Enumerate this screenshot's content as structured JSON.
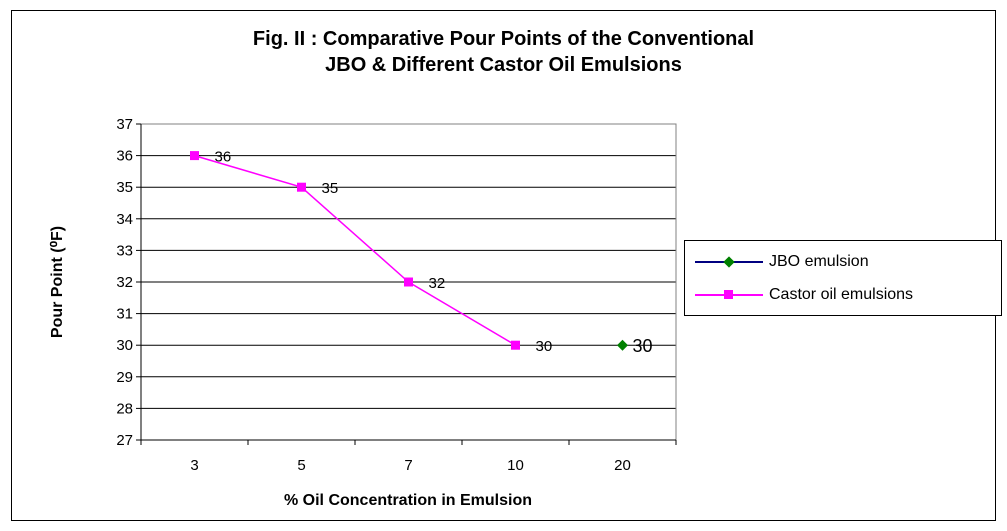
{
  "chart_data": {
    "type": "line",
    "title_line1": "Fig. II : Comparative Pour Points of the Conventional",
    "title_line2": "JBO & Different Castor Oil Emulsions",
    "xlabel": "% Oil Concentration in Emulsion",
    "ylabel": "Pour Point (⁰F)",
    "categories": [
      "3",
      "5",
      "7",
      "10",
      "20"
    ],
    "ylim": [
      27,
      37
    ],
    "yticks": [
      27,
      28,
      29,
      30,
      31,
      32,
      33,
      34,
      35,
      36,
      37
    ],
    "grid": true,
    "legend_position": "right",
    "series": [
      {
        "name": "JBO emulsion",
        "color": "#008000",
        "line_color": "#000080",
        "marker": "diamond",
        "values": [
          null,
          null,
          null,
          null,
          30
        ],
        "labels": [
          "",
          "",
          "",
          "",
          "30"
        ]
      },
      {
        "name": "Castor oil emulsions",
        "color": "#ff00ff",
        "line_color": "#ff00ff",
        "marker": "square",
        "values": [
          36,
          35,
          32,
          30,
          null
        ],
        "labels": [
          "36",
          "35",
          "32",
          "30",
          ""
        ]
      }
    ]
  }
}
